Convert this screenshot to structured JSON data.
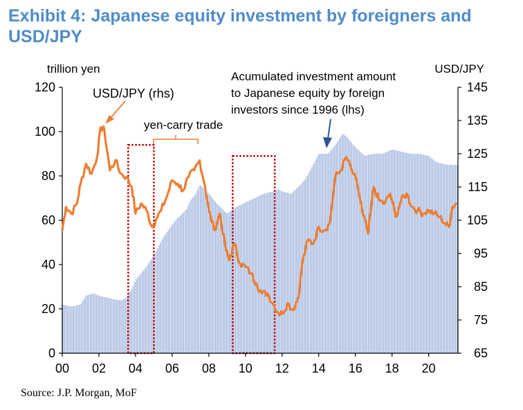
{
  "exhibit": {
    "title": "Exhibit 4: Japanese equity investment by foreigners and USD/JPY",
    "source": "Source: J.P. Morgan, MoF"
  },
  "chart_data": {
    "type": "bar+line",
    "title": "Exhibit 4: Japanese equity investment by foreigners and USD/JPY",
    "left_axis": {
      "unit": "trillion yen",
      "range": [
        0,
        120
      ],
      "ticks": [
        0,
        20,
        40,
        60,
        80,
        100,
        120
      ]
    },
    "right_axis": {
      "unit": "USD/JPY",
      "range": [
        65,
        145
      ],
      "ticks": [
        65,
        75,
        85,
        95,
        105,
        115,
        125,
        135,
        145
      ]
    },
    "x_axis": {
      "range": [
        2000,
        2021.6
      ],
      "ticks": [
        "00",
        "02",
        "04",
        "06",
        "08",
        "10",
        "12",
        "14",
        "16",
        "18",
        "20"
      ],
      "tick_years": [
        2000,
        2002,
        2004,
        2006,
        2008,
        2010,
        2012,
        2014,
        2016,
        2018,
        2020
      ]
    },
    "bar_colors": [
      "#8fa9d8",
      "#ffffff"
    ],
    "line_color": "#ed7d31",
    "highlight_color": "#c00000",
    "series": [
      {
        "name": "Acumulated investment amount to Japanese equity by foreign investors since 1996",
        "axis": "left",
        "kind": "bar",
        "points": [
          [
            2000.0,
            22
          ],
          [
            2000.5,
            21
          ],
          [
            2001.0,
            22
          ],
          [
            2001.3,
            26
          ],
          [
            2001.7,
            27
          ],
          [
            2002.0,
            26
          ],
          [
            2002.5,
            25
          ],
          [
            2003.0,
            24
          ],
          [
            2003.3,
            24
          ],
          [
            2003.5,
            25
          ],
          [
            2003.8,
            29
          ],
          [
            2004.0,
            33
          ],
          [
            2004.5,
            38
          ],
          [
            2005.0,
            44
          ],
          [
            2005.5,
            52
          ],
          [
            2006.0,
            58
          ],
          [
            2006.3,
            61
          ],
          [
            2006.8,
            65
          ],
          [
            2007.0,
            69
          ],
          [
            2007.3,
            72
          ],
          [
            2007.5,
            76
          ],
          [
            2007.8,
            74
          ],
          [
            2008.0,
            72
          ],
          [
            2008.5,
            67
          ],
          [
            2009.0,
            63
          ],
          [
            2009.3,
            65
          ],
          [
            2009.5,
            66
          ],
          [
            2010.0,
            68
          ],
          [
            2010.5,
            70
          ],
          [
            2011.0,
            72
          ],
          [
            2011.5,
            73
          ],
          [
            2011.8,
            74
          ],
          [
            2012.0,
            73
          ],
          [
            2012.5,
            72
          ],
          [
            2013.0,
            76
          ],
          [
            2013.3,
            79
          ],
          [
            2013.5,
            82
          ],
          [
            2014.0,
            90
          ],
          [
            2014.5,
            90
          ],
          [
            2015.0,
            95
          ],
          [
            2015.3,
            99
          ],
          [
            2015.5,
            98
          ],
          [
            2016.0,
            93
          ],
          [
            2016.5,
            89
          ],
          [
            2017.0,
            90
          ],
          [
            2017.5,
            90
          ],
          [
            2018.0,
            92
          ],
          [
            2018.5,
            91
          ],
          [
            2019.0,
            90
          ],
          [
            2019.5,
            90
          ],
          [
            2020.0,
            89
          ],
          [
            2020.3,
            87
          ],
          [
            2020.5,
            86
          ],
          [
            2021.0,
            85
          ],
          [
            2021.5,
            85
          ]
        ]
      },
      {
        "name": "USD/JPY (rhs)",
        "axis": "right",
        "kind": "line",
        "points": [
          [
            2000.0,
            102
          ],
          [
            2000.2,
            109
          ],
          [
            2000.5,
            107
          ],
          [
            2000.8,
            110
          ],
          [
            2001.0,
            116
          ],
          [
            2001.3,
            122
          ],
          [
            2001.6,
            119
          ],
          [
            2001.9,
            124
          ],
          [
            2002.1,
            133
          ],
          [
            2002.3,
            132
          ],
          [
            2002.6,
            120
          ],
          [
            2002.9,
            123
          ],
          [
            2003.2,
            119
          ],
          [
            2003.5,
            118
          ],
          [
            2003.8,
            115
          ],
          [
            2004.0,
            107
          ],
          [
            2004.3,
            110
          ],
          [
            2004.6,
            108
          ],
          [
            2004.9,
            103
          ],
          [
            2005.1,
            105
          ],
          [
            2005.4,
            108
          ],
          [
            2005.7,
            112
          ],
          [
            2006.0,
            117
          ],
          [
            2006.3,
            116
          ],
          [
            2006.6,
            114
          ],
          [
            2006.9,
            118
          ],
          [
            2007.2,
            120
          ],
          [
            2007.5,
            123
          ],
          [
            2007.8,
            115
          ],
          [
            2008.0,
            108
          ],
          [
            2008.3,
            102
          ],
          [
            2008.6,
            107
          ],
          [
            2008.9,
            97
          ],
          [
            2009.1,
            93
          ],
          [
            2009.4,
            98
          ],
          [
            2009.7,
            92
          ],
          [
            2010.0,
            91
          ],
          [
            2010.3,
            89
          ],
          [
            2010.6,
            86
          ],
          [
            2010.9,
            83
          ],
          [
            2011.2,
            83
          ],
          [
            2011.5,
            80
          ],
          [
            2011.8,
            77
          ],
          [
            2012.0,
            77
          ],
          [
            2012.3,
            80
          ],
          [
            2012.6,
            78
          ],
          [
            2012.9,
            82
          ],
          [
            2013.1,
            92
          ],
          [
            2013.4,
            99
          ],
          [
            2013.7,
            98
          ],
          [
            2014.0,
            103
          ],
          [
            2014.3,
            102
          ],
          [
            2014.6,
            104
          ],
          [
            2014.9,
            118
          ],
          [
            2015.2,
            120
          ],
          [
            2015.5,
            124
          ],
          [
            2015.8,
            120
          ],
          [
            2016.1,
            116
          ],
          [
            2016.4,
            107
          ],
          [
            2016.7,
            101
          ],
          [
            2017.0,
            115
          ],
          [
            2017.3,
            111
          ],
          [
            2017.6,
            110
          ],
          [
            2017.9,
            113
          ],
          [
            2018.2,
            106
          ],
          [
            2018.5,
            111
          ],
          [
            2018.8,
            113
          ],
          [
            2019.1,
            109
          ],
          [
            2019.4,
            108
          ],
          [
            2019.7,
            107
          ],
          [
            2020.0,
            108
          ],
          [
            2020.3,
            107
          ],
          [
            2020.6,
            106
          ],
          [
            2020.9,
            104
          ],
          [
            2021.1,
            103
          ],
          [
            2021.3,
            109
          ],
          [
            2021.5,
            110
          ]
        ]
      }
    ],
    "annotations": [
      {
        "id": "usdjpy_label",
        "text": "USD/JPY (rhs)"
      },
      {
        "id": "yen_carry",
        "text": "yen-carry trade",
        "x_range": [
          2005.3,
          2008.2
        ]
      },
      {
        "id": "acc_label",
        "lines": [
          "Acumulated investment amount",
          "to Japanese equity by foreign",
          "investors since 1996 (lhs)"
        ]
      }
    ],
    "highlight_boxes": [
      {
        "x_range": [
          2003.6,
          2005.0
        ],
        "y_range": [
          0,
          94
        ]
      },
      {
        "x_range": [
          2009.3,
          2011.6
        ],
        "y_range": [
          0,
          89
        ]
      }
    ]
  }
}
